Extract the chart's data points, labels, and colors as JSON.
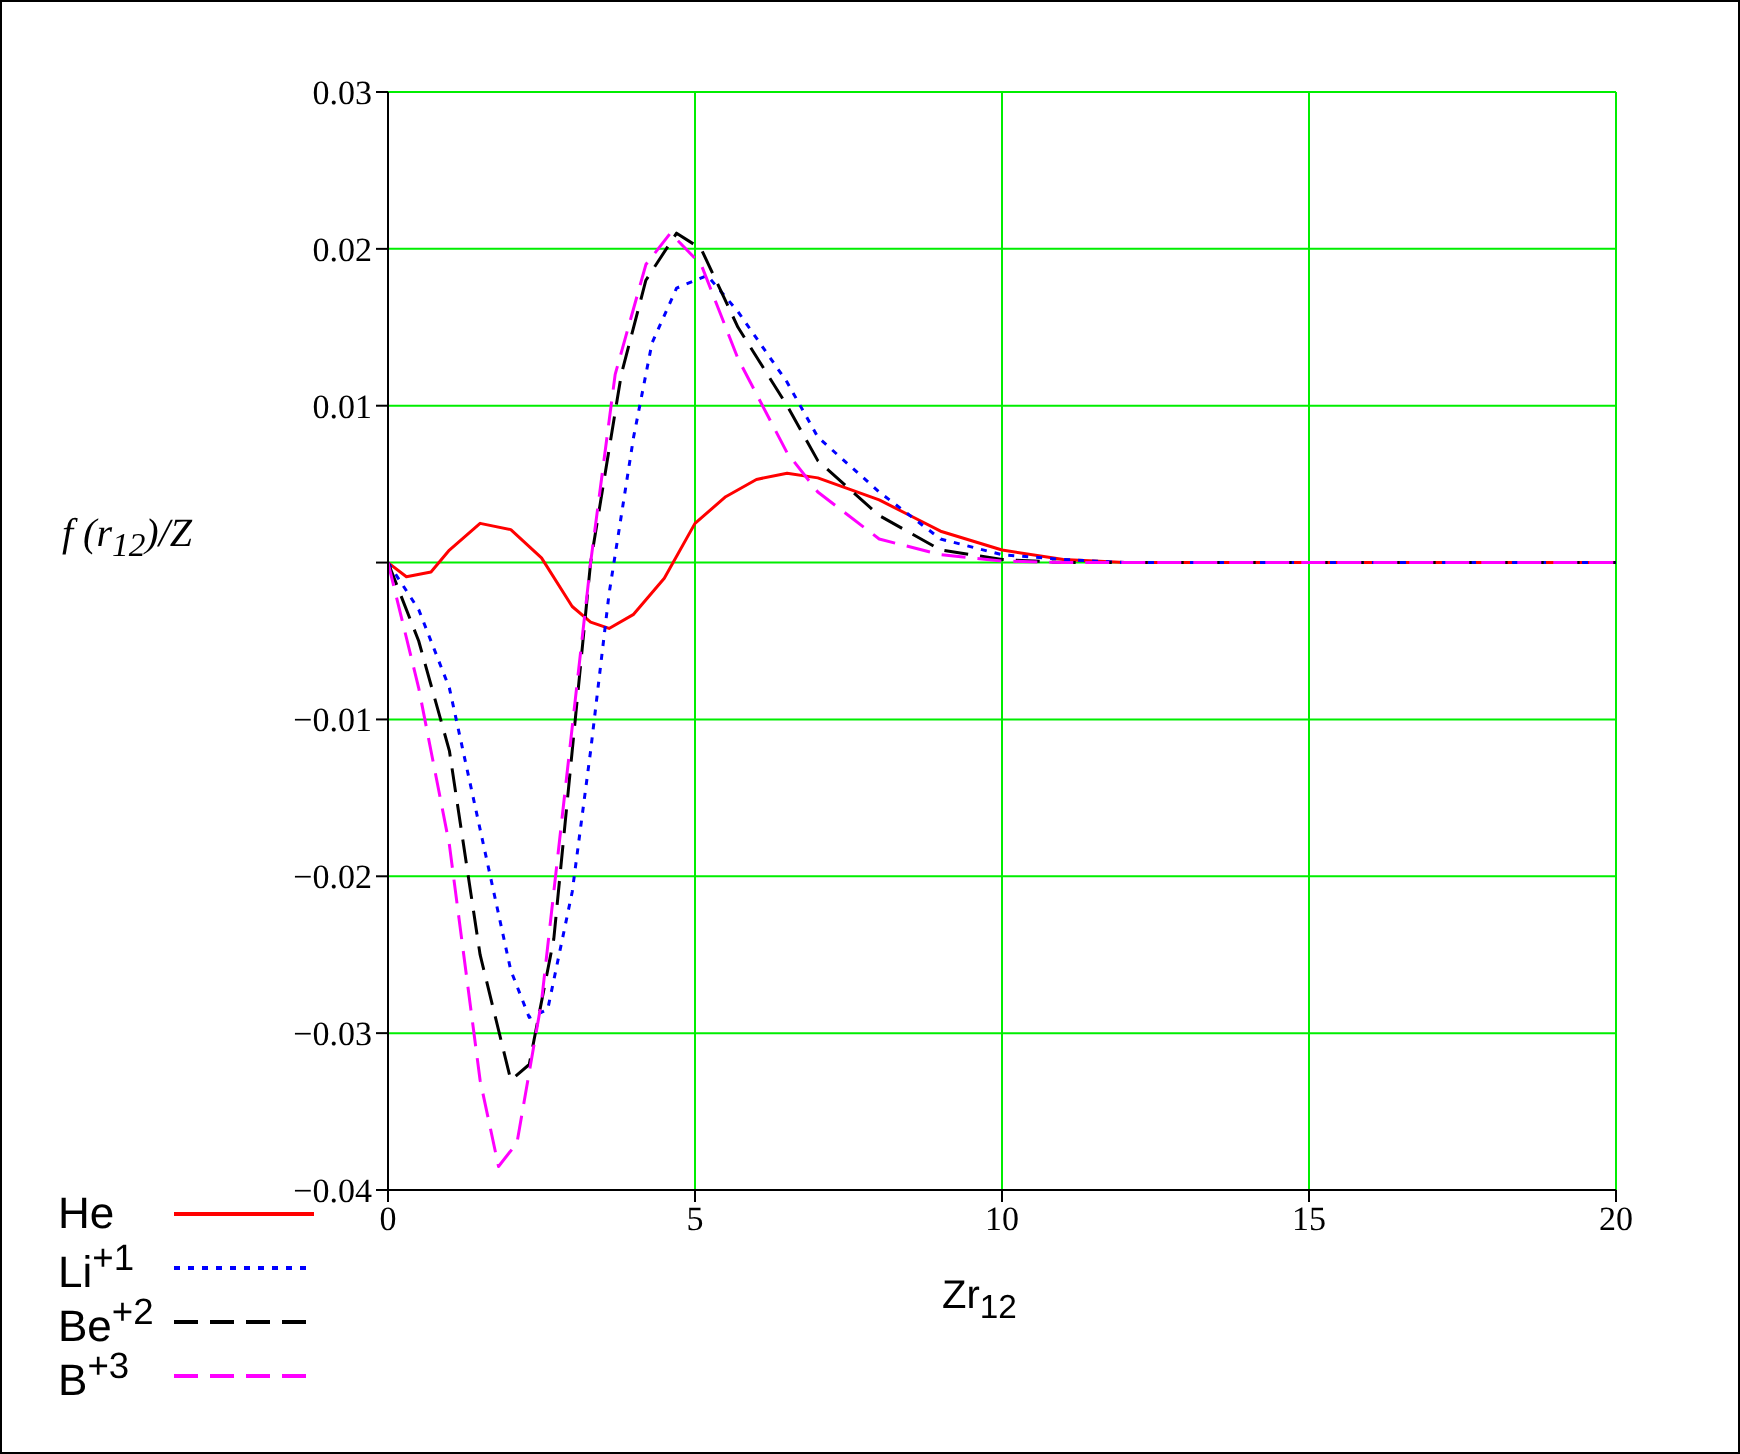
{
  "chart_data": {
    "type": "line",
    "xlabel": "Zr$_{12}$",
    "ylabel": "f (r$_{12}$)/Z",
    "xlim": [
      0,
      20
    ],
    "xticks": [
      0,
      5,
      10,
      15,
      20
    ],
    "ylim": [
      -0.04,
      0.03
    ],
    "yticks": [
      -0.04,
      -0.03,
      -0.02,
      -0.01,
      {
        "value": 0,
        "label": null
      },
      0.01,
      0.02,
      0.03
    ],
    "grid": true,
    "legend": "bottom left",
    "marker": "none",
    "series": [
      {
        "name": "He",
        "color": "#ff0000",
        "line_style": "solid",
        "x": [
          0,
          0.3,
          0.7,
          1,
          1.5,
          2,
          2.5,
          3,
          3.3,
          3.6,
          4,
          4.5,
          5,
          5.5,
          6,
          6.5,
          7,
          7.5,
          8,
          8.5,
          9,
          10,
          11,
          12,
          20
        ],
        "values": [
          0,
          -0.0009,
          -0.0006,
          0.0008,
          0.0025,
          0.0021,
          0.0003,
          -0.0028,
          -0.0038,
          -0.0042,
          -0.0033,
          -0.001,
          0.0025,
          0.0042,
          0.0053,
          0.0057,
          0.0054,
          0.0047,
          0.004,
          0.003,
          0.002,
          0.0008,
          0.0002,
          0,
          0
        ]
      },
      {
        "name": "Li$^{+1}$",
        "color": "#0000ff",
        "line_style": "dotted",
        "x": [
          0,
          0.5,
          1,
          1.5,
          2,
          2.3,
          2.6,
          3,
          3.3,
          3.6,
          4,
          4.3,
          4.7,
          5.2,
          5.7,
          6.5,
          7,
          8,
          9,
          10,
          11,
          12,
          20
        ],
        "values": [
          0,
          -0.003,
          -0.008,
          -0.017,
          -0.026,
          -0.029,
          -0.0285,
          -0.021,
          -0.012,
          -0.002,
          0.008,
          0.014,
          0.0175,
          0.0183,
          0.016,
          0.0115,
          0.008,
          0.0045,
          0.0015,
          0.0005,
          0.0002,
          0,
          0
        ]
      },
      {
        "name": "Be$^{+2}$",
        "color": "#000000",
        "line_style": "dashed",
        "x": [
          0,
          0.5,
          1,
          1.5,
          2,
          2.3,
          2.7,
          3,
          3.3,
          3.8,
          4.2,
          4.7,
          5.1,
          5.7,
          6.5,
          7,
          8,
          9,
          10,
          11,
          20
        ],
        "values": [
          0,
          -0.005,
          -0.012,
          -0.025,
          -0.033,
          -0.032,
          -0.024,
          -0.012,
          0,
          0.012,
          0.018,
          0.021,
          0.02,
          0.015,
          0.01,
          0.0065,
          0.003,
          0.0008,
          0.0002,
          0,
          0
        ]
      },
      {
        "name": "B$^{+3}$",
        "color": "#ff00ff",
        "line_style": "dashed",
        "x": [
          0,
          0.5,
          1,
          1.5,
          1.8,
          2.1,
          2.5,
          2.9,
          3.3,
          3.7,
          4.2,
          4.6,
          5.1,
          5.7,
          6.5,
          7,
          8,
          9,
          10,
          11,
          20
        ],
        "values": [
          0,
          -0.008,
          -0.018,
          -0.033,
          -0.0385,
          -0.037,
          -0.028,
          -0.014,
          0,
          0.012,
          0.019,
          0.021,
          0.019,
          0.013,
          0.007,
          0.0045,
          0.0015,
          0.0005,
          0.0001,
          0,
          0
        ]
      }
    ]
  }
}
